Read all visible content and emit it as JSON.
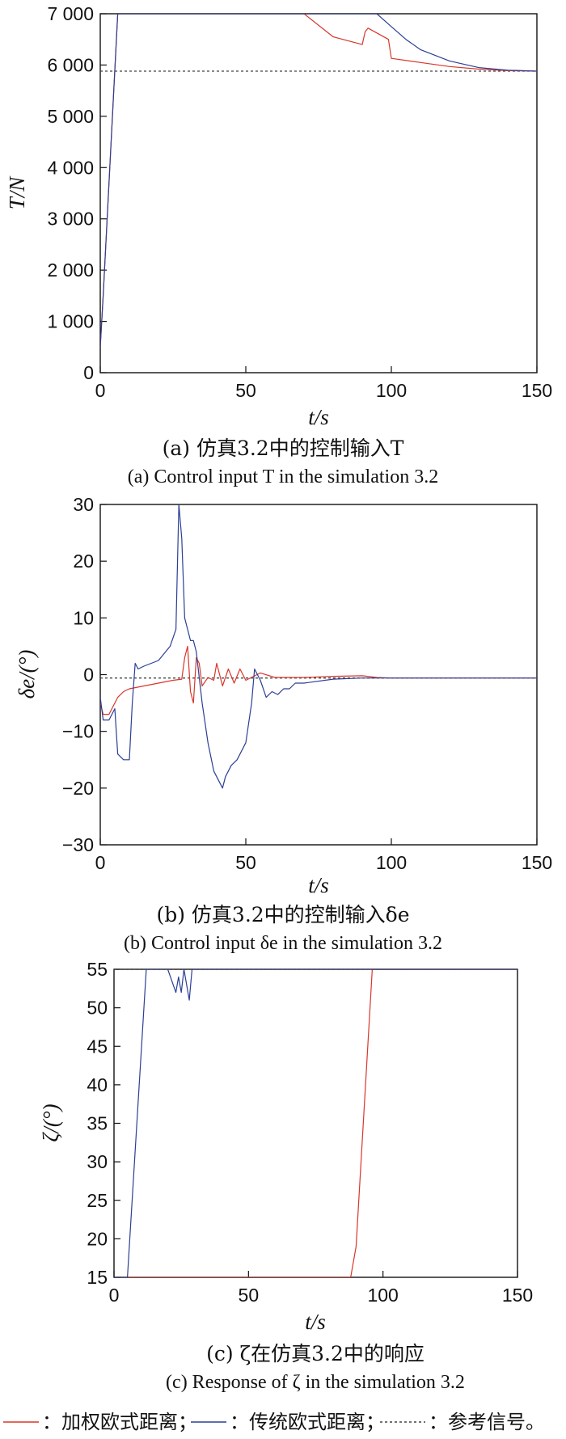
{
  "legend": {
    "weighted": "：加权欧式距离；",
    "traditional": "：传统欧式距离；",
    "reference": "：参考信号。"
  },
  "colors": {
    "weighted": "#d8362a",
    "traditional": "#2b3f94",
    "reference": "#444444"
  },
  "charts": [
    {
      "caption_cn": "(a) 仿真3.2中的控制输入T",
      "caption_en": "(a) Control input T in the simulation 3.2",
      "ylabel": "T/N",
      "xlabel": "t/s",
      "xticks": [
        "0",
        "50",
        "100",
        "150"
      ],
      "yticks": [
        "0",
        "1 000",
        "2 000",
        "3 000",
        "4 000",
        "5 000",
        "6 000",
        "7 000"
      ]
    },
    {
      "caption_cn": "(b) 仿真3.2中的控制输入δe",
      "caption_en": "(b) Control input δe in the simulation 3.2",
      "ylabel": "δe/(°)",
      "xlabel": "t/s",
      "xticks": [
        "0",
        "50",
        "100",
        "150"
      ],
      "yticks": [
        "−30",
        "−20",
        "−10",
        "0",
        "10",
        "20",
        "30"
      ]
    },
    {
      "caption_cn": "(c) ζ在仿真3.2中的响应",
      "caption_en": "(c) Response of ζ in the simulation 3.2",
      "ylabel": "ζ/(°)",
      "xlabel": "t/s",
      "xticks": [
        "0",
        "50",
        "100",
        "150"
      ],
      "yticks": [
        "15",
        "20",
        "25",
        "30",
        "35",
        "40",
        "45",
        "50",
        "55"
      ]
    }
  ],
  "chart_data": [
    {
      "type": "line",
      "title": "(a) Control input T in the simulation 3.2",
      "xlabel": "t/s",
      "ylabel": "T/N",
      "xlim": [
        0,
        150
      ],
      "ylim": [
        0,
        7000
      ],
      "series": [
        {
          "name": "加权欧式距离",
          "x": [
            0,
            1,
            6,
            70,
            80,
            82,
            90,
            91,
            92,
            99,
            100,
            110,
            120,
            130,
            140,
            150
          ],
          "y": [
            500,
            1500,
            7000,
            7000,
            6550,
            6520,
            6400,
            6650,
            6720,
            6500,
            6130,
            6050,
            5970,
            5920,
            5890,
            5880
          ]
        },
        {
          "name": "传统欧式距离",
          "x": [
            0,
            1,
            6,
            88,
            95,
            100,
            105,
            110,
            120,
            130,
            140,
            150
          ],
          "y": [
            500,
            1500,
            7000,
            7000,
            7000,
            6750,
            6500,
            6300,
            6080,
            5950,
            5900,
            5880
          ]
        },
        {
          "name": "参考信号",
          "x": [
            0,
            150
          ],
          "y": [
            5880,
            5880
          ]
        }
      ]
    },
    {
      "type": "line",
      "title": "(b) Control input δe in the simulation 3.2",
      "xlabel": "t/s",
      "ylabel": "δe/(°)",
      "xlim": [
        0,
        150
      ],
      "ylim": [
        -30,
        30
      ],
      "series": [
        {
          "name": "加权欧式距离",
          "x": [
            0,
            1,
            3,
            5,
            6,
            8,
            10,
            15,
            20,
            25,
            28,
            29,
            30,
            31,
            32,
            33,
            34,
            35,
            37,
            39,
            40,
            42,
            44,
            46,
            48,
            50,
            55,
            60,
            70,
            80,
            90,
            95,
            100,
            110,
            120,
            130,
            140,
            150
          ],
          "y": [
            -5,
            -7,
            -7,
            -5,
            -4,
            -3,
            -2.5,
            -2,
            -1.5,
            -1,
            -0.8,
            3,
            5,
            -3,
            -5,
            3,
            2,
            -2,
            -0.5,
            -1,
            2,
            -2,
            1,
            -1.5,
            1,
            -1,
            0.3,
            -0.5,
            -0.5,
            -0.3,
            -0.2,
            -0.5,
            -0.6,
            -0.6,
            -0.6,
            -0.6,
            -0.6,
            -0.6
          ]
        },
        {
          "name": "传统欧式距离",
          "x": [
            0,
            1,
            3,
            5,
            6,
            8,
            10,
            11,
            12,
            13,
            15,
            20,
            24,
            26,
            27,
            28,
            29,
            30,
            31,
            32,
            33,
            35,
            37,
            39,
            41,
            42,
            43,
            45,
            47,
            50,
            52,
            53,
            54,
            55,
            57,
            59,
            61,
            63,
            65,
            67,
            70,
            80,
            90,
            100,
            110,
            120,
            130,
            140,
            150
          ],
          "y": [
            -4,
            -8,
            -8,
            -6,
            -14,
            -15,
            -15,
            -5,
            2,
            1,
            1.5,
            2.5,
            5,
            8,
            30,
            24,
            10,
            8,
            6,
            6,
            4,
            -5,
            -12,
            -17,
            -19,
            -20,
            -18,
            -16,
            -15,
            -12,
            -5,
            1,
            0,
            -1,
            -4,
            -3,
            -3.5,
            -2.5,
            -2.5,
            -1.5,
            -1.5,
            -0.8,
            -0.6,
            -0.6,
            -0.6,
            -0.6,
            -0.6,
            -0.6,
            -0.6
          ]
        },
        {
          "name": "参考信号",
          "x": [
            0,
            150
          ],
          "y": [
            -0.6,
            -0.6
          ]
        }
      ]
    },
    {
      "type": "line",
      "title": "(c) Response of ζ in the simulation 3.2",
      "xlabel": "t/s",
      "ylabel": "ζ/(°)",
      "xlim": [
        0,
        150
      ],
      "ylim": [
        15,
        55
      ],
      "series": [
        {
          "name": "加权欧式距离",
          "x": [
            0,
            88,
            90,
            96,
            100,
            150
          ],
          "y": [
            15,
            15,
            19,
            55,
            55,
            55
          ]
        },
        {
          "name": "传统欧式距离",
          "x": [
            0,
            5,
            12,
            13,
            20,
            23,
            24,
            25,
            26,
            27,
            28,
            29,
            30,
            40,
            150
          ],
          "y": [
            15,
            15,
            55,
            55,
            55,
            52,
            54,
            52,
            55,
            53,
            51,
            55,
            55,
            55,
            55
          ]
        },
        {
          "name": "参考信号",
          "x": [
            0,
            150
          ],
          "y": [
            55,
            55
          ]
        }
      ]
    }
  ]
}
